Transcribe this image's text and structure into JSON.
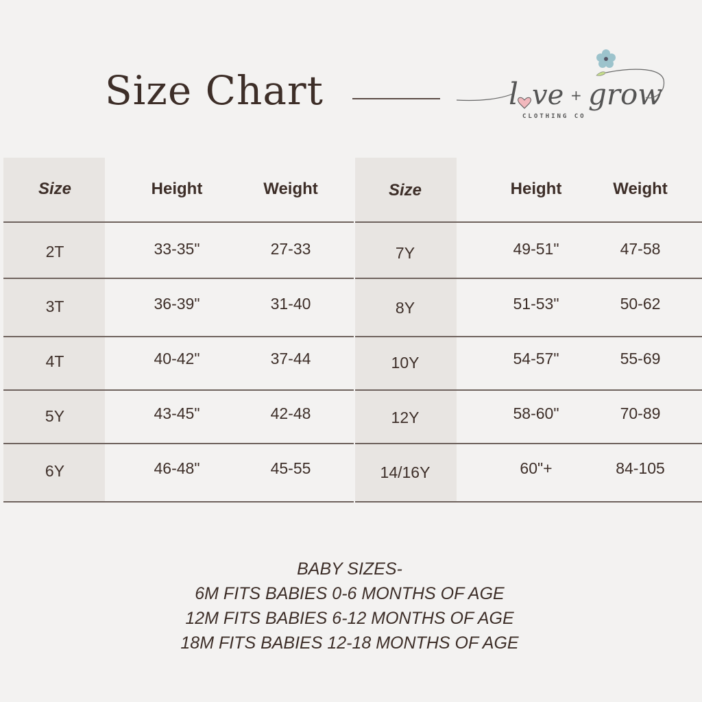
{
  "title": "Size Chart",
  "logo": {
    "text": "love + grow",
    "subtext": "CLOTHING CO"
  },
  "tables": [
    {
      "headers": [
        "Size",
        "Height",
        "Weight"
      ],
      "rows": [
        [
          "2T",
          "33-35\"",
          "27-33"
        ],
        [
          "3T",
          "36-39\"",
          "31-40"
        ],
        [
          "4T",
          "40-42\"",
          "37-44"
        ],
        [
          "5Y",
          "43-45\"",
          "42-48"
        ],
        [
          "6Y",
          "46-48\"",
          "45-55"
        ]
      ]
    },
    {
      "headers": [
        "Size",
        "Height",
        "Weight"
      ],
      "rows": [
        [
          "7Y",
          "49-51\"",
          "47-58"
        ],
        [
          "8Y",
          "51-53\"",
          "50-62"
        ],
        [
          "10Y",
          "54-57\"",
          "55-69"
        ],
        [
          "12Y",
          "58-60\"",
          "70-89"
        ],
        [
          "14/16Y",
          "60\"+",
          "84-105"
        ]
      ]
    }
  ],
  "baby_sizes": [
    "BABY SIZES-",
    "6M FITS BABIES 0-6 MONTHS OF AGE",
    "12M FITS BABIES 6-12 MONTHS OF AGE",
    "18M FITS BABIES 12-18 MONTHS OF AGE"
  ],
  "colors": {
    "background": "#f3f2f1",
    "size_column": "#e8e5e2",
    "text": "#3d2e28",
    "heart": "#f2b8bd",
    "flower": "#9cc3cc",
    "leaf": "#c4dc8a"
  }
}
